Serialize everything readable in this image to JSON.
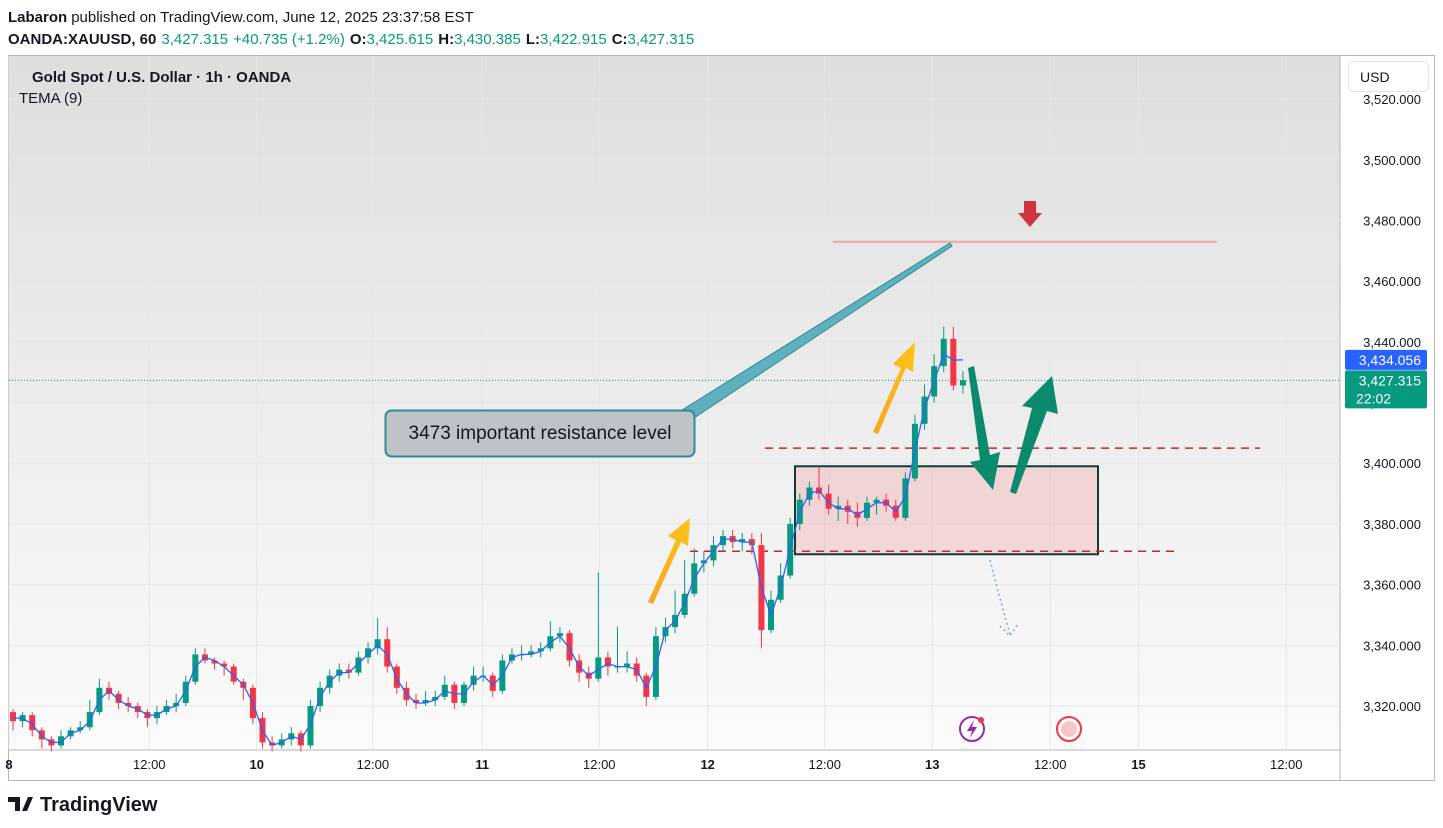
{
  "header": {
    "author": "Labaron",
    "published": "published on TradingView.com, June 12, 2025 23:37:58 EST",
    "symbol": "OANDA:XAUUSD, 60",
    "last": "3,427.315",
    "change": "+40.735 (+1.2%)",
    "o_label": "O:",
    "o": "3,425.615",
    "h_label": "H:",
    "h": "3,430.385",
    "l_label": "L:",
    "l": "3,422.915",
    "c_label": "C:",
    "c": "3,427.315"
  },
  "currency": "USD",
  "brand": "TradingView",
  "chart_data": {
    "type": "candlestick",
    "title": "Gold Spot / U.S. Dollar · 1h · OANDA",
    "up_color": "#089981",
    "down_color": "#f23645",
    "ohlc": [
      [
        3318,
        3319,
        3312,
        3315
      ],
      [
        3315,
        3318,
        3313,
        3317
      ],
      [
        3317,
        3318,
        3310,
        3312
      ],
      [
        3312,
        3313,
        3306,
        3309
      ],
      [
        3309,
        3310,
        3305,
        3307
      ],
      [
        3307,
        3312,
        3306,
        3310
      ],
      [
        3310,
        3313,
        3309,
        3312
      ],
      [
        3312,
        3315,
        3311,
        3313
      ],
      [
        3313,
        3322,
        3312,
        3318
      ],
      [
        3318,
        3329,
        3317,
        3326
      ],
      [
        3326,
        3328,
        3322,
        3324
      ],
      [
        3324,
        3325,
        3319,
        3321
      ],
      [
        3321,
        3323,
        3318,
        3320
      ],
      [
        3320,
        3321,
        3316,
        3318
      ],
      [
        3318,
        3319,
        3313,
        3316
      ],
      [
        3316,
        3320,
        3314,
        3318
      ],
      [
        3318,
        3322,
        3317,
        3320
      ],
      [
        3320,
        3324,
        3318,
        3321
      ],
      [
        3321,
        3330,
        3320,
        3328
      ],
      [
        3328,
        3339,
        3327,
        3337
      ],
      [
        3337,
        3339,
        3334,
        3335
      ],
      [
        3335,
        3336,
        3332,
        3334
      ],
      [
        3334,
        3335,
        3330,
        3333
      ],
      [
        3333,
        3334,
        3327,
        3328
      ],
      [
        3328,
        3329,
        3322,
        3326
      ],
      [
        3326,
        3327,
        3314,
        3316
      ],
      [
        3316,
        3318,
        3306,
        3308
      ],
      [
        3308,
        3310,
        3305,
        3307
      ],
      [
        3307,
        3311,
        3306,
        3309
      ],
      [
        3309,
        3313,
        3307,
        3311
      ],
      [
        3311,
        3312,
        3305,
        3307
      ],
      [
        3307,
        3322,
        3306,
        3320
      ],
      [
        3320,
        3328,
        3318,
        3326
      ],
      [
        3326,
        3332,
        3324,
        3330
      ],
      [
        3330,
        3334,
        3328,
        3332
      ],
      [
        3332,
        3334,
        3329,
        3331
      ],
      [
        3331,
        3338,
        3330,
        3336
      ],
      [
        3336,
        3341,
        3334,
        3339
      ],
      [
        3339,
        3349,
        3337,
        3342
      ],
      [
        3342,
        3346,
        3331,
        3333
      ],
      [
        3333,
        3334,
        3324,
        3326
      ],
      [
        3326,
        3328,
        3320,
        3322
      ],
      [
        3322,
        3324,
        3319,
        3321
      ],
      [
        3321,
        3325,
        3320,
        3322
      ],
      [
        3322,
        3325,
        3320,
        3323
      ],
      [
        3323,
        3330,
        3322,
        3327
      ],
      [
        3327,
        3328,
        3319,
        3321
      ],
      [
        3321,
        3328,
        3320,
        3327
      ],
      [
        3327,
        3333,
        3325,
        3330
      ],
      [
        3330,
        3333,
        3328,
        3330
      ],
      [
        3330,
        3331,
        3323,
        3325
      ],
      [
        3325,
        3337,
        3324,
        3335
      ],
      [
        3335,
        3339,
        3334,
        3337
      ],
      [
        3337,
        3340,
        3335,
        3337
      ],
      [
        3337,
        3340,
        3336,
        3338
      ],
      [
        3338,
        3341,
        3336,
        3339
      ],
      [
        3339,
        3348,
        3338,
        3343
      ],
      [
        3343,
        3346,
        3341,
        3344
      ],
      [
        3344,
        3345,
        3333,
        3335
      ],
      [
        3335,
        3337,
        3328,
        3331
      ],
      [
        3331,
        3333,
        3326,
        3329
      ],
      [
        3329,
        3364,
        3328,
        3336
      ],
      [
        3336,
        3338,
        3330,
        3333
      ],
      [
        3333,
        3346,
        3331,
        3333
      ],
      [
        3333,
        3338,
        3331,
        3334
      ],
      [
        3334,
        3336,
        3328,
        3330
      ],
      [
        3330,
        3331,
        3320,
        3323
      ],
      [
        3323,
        3346,
        3322,
        3343
      ],
      [
        3343,
        3349,
        3341,
        3346
      ],
      [
        3346,
        3358,
        3344,
        3350
      ],
      [
        3350,
        3368,
        3349,
        3357
      ],
      [
        3357,
        3372,
        3356,
        3367
      ],
      [
        3367,
        3371,
        3364,
        3368
      ],
      [
        3368,
        3376,
        3366,
        3373
      ],
      [
        3373,
        3378,
        3371,
        3376
      ],
      [
        3376,
        3378,
        3372,
        3374
      ],
      [
        3374,
        3377,
        3371,
        3375
      ],
      [
        3375,
        3377,
        3370,
        3373
      ],
      [
        3373,
        3377,
        3339,
        3345
      ],
      [
        3345,
        3358,
        3344,
        3355
      ],
      [
        3355,
        3367,
        3354,
        3363
      ],
      [
        3363,
        3382,
        3362,
        3380
      ],
      [
        3380,
        3390,
        3378,
        3388
      ],
      [
        3388,
        3394,
        3386,
        3392
      ],
      [
        3392,
        3399,
        3388,
        3390
      ],
      [
        3390,
        3393,
        3383,
        3385
      ],
      [
        3385,
        3389,
        3381,
        3386
      ],
      [
        3386,
        3388,
        3380,
        3384
      ],
      [
        3384,
        3387,
        3379,
        3382
      ],
      [
        3382,
        3389,
        3381,
        3387
      ],
      [
        3387,
        3389,
        3383,
        3388
      ],
      [
        3388,
        3390,
        3384,
        3386
      ],
      [
        3386,
        3388,
        3381,
        3382
      ],
      [
        3382,
        3397,
        3381,
        3395
      ],
      [
        3395,
        3416,
        3394,
        3413
      ],
      [
        3413,
        3426,
        3411,
        3422
      ],
      [
        3422,
        3436,
        3420,
        3432
      ],
      [
        3432,
        3445,
        3430,
        3441
      ],
      [
        3441,
        3445,
        3424,
        3425.615
      ],
      [
        3425.615,
        3430.385,
        3422.915,
        3427.315
      ]
    ],
    "series": [
      {
        "name": "TEMA (9)",
        "color": "#2962ff",
        "values": [
          3316,
          3316,
          3314,
          3310,
          3308,
          3308,
          3311,
          3312,
          3315,
          3322,
          3325,
          3322,
          3320,
          3319,
          3317,
          3317,
          3319,
          3320,
          3325,
          3333,
          3336,
          3335,
          3333,
          3330,
          3327,
          3321,
          3312,
          3307,
          3308,
          3310,
          3309,
          3314,
          3323,
          3328,
          3331,
          3331,
          3334,
          3337,
          3340,
          3337,
          3329,
          3324,
          3321,
          3321,
          3322,
          3325,
          3324,
          3324,
          3328,
          3330,
          3327,
          3330,
          3336,
          3337,
          3337,
          3338,
          3341,
          3343,
          3339,
          3333,
          3330,
          3332,
          3334,
          3333,
          3333,
          3332,
          3326,
          3333,
          3345,
          3348,
          3354,
          3362,
          3367,
          3371,
          3375,
          3375,
          3374,
          3374,
          3359,
          3350,
          3359,
          3372,
          3384,
          3390,
          3391,
          3387,
          3385,
          3385,
          3383,
          3385,
          3387,
          3387,
          3384,
          3389,
          3404,
          3418,
          3427,
          3436,
          3434,
          3434.056
        ]
      }
    ],
    "ylim": [
      3305.5,
      3534.2
    ],
    "yticks": [
      {
        "value": 3320,
        "label": "3,320.000"
      },
      {
        "value": 3340,
        "label": "3,340.000"
      },
      {
        "value": 3360,
        "label": "3,360.000"
      },
      {
        "value": 3380,
        "label": "3,380.000"
      },
      {
        "value": 3400,
        "label": "3,400.000"
      },
      {
        "value": 3420,
        "label": "3,420.000"
      },
      {
        "value": 3440,
        "label": "3,440.000"
      },
      {
        "value": 3460,
        "label": "3,460.000"
      },
      {
        "value": 3480,
        "label": "3,480.000"
      },
      {
        "value": 3500,
        "label": "3,500.000"
      },
      {
        "value": 3520,
        "label": "3,520.000"
      }
    ],
    "xlim": [
      -0.42,
      138.3
    ],
    "xticks": [
      {
        "value": -0.42,
        "label": "8"
      },
      {
        "value": 14.2,
        "label": "12:00"
      },
      {
        "value": 25.4,
        "label": "10"
      },
      {
        "value": 37.5,
        "label": "12:00"
      },
      {
        "value": 48.9,
        "label": "11"
      },
      {
        "value": 61.1,
        "label": "12:00"
      },
      {
        "value": 72.4,
        "label": "12"
      },
      {
        "value": 84.6,
        "label": "12:00"
      },
      {
        "value": 95.8,
        "label": "13"
      },
      {
        "value": 108.1,
        "label": "12:00"
      },
      {
        "value": 117.3,
        "label": "15"
      },
      {
        "value": 132.7,
        "label": "12:00"
      }
    ],
    "grid": true,
    "price_tags": [
      {
        "value": 3434.056,
        "label": "3,434.056",
        "color": "#2962ff"
      },
      {
        "value": 3427.315,
        "label": "3,427.315",
        "sub": "22:02",
        "color": "#089981"
      }
    ],
    "resistance": 3473,
    "dashed_levels": [
      3405,
      3371
    ],
    "zone": [
      3370,
      3399
    ],
    "annotation": "3473 important resistance level"
  }
}
